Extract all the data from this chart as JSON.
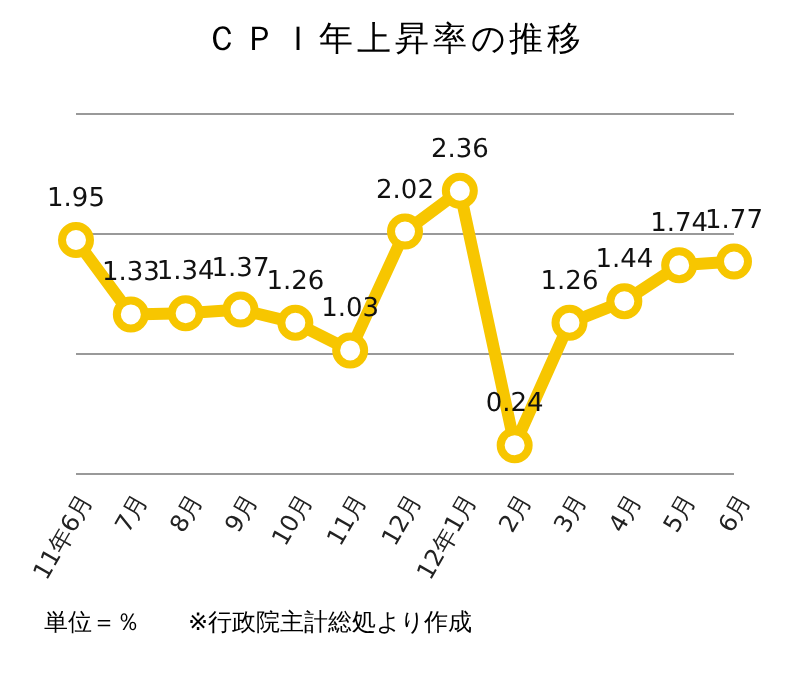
{
  "chart_data": {
    "type": "line",
    "title": "ＣＰＩ年上昇率の推移",
    "categories": [
      "11年6月",
      "7月",
      "8月",
      "9月",
      "10月",
      "11月",
      "12月",
      "12年1月",
      "2月",
      "3月",
      "4月",
      "5月",
      "6月"
    ],
    "series": [
      {
        "color": "#f7c600",
        "values": [
          1.95,
          1.33,
          1.34,
          1.37,
          1.26,
          1.03,
          2.02,
          2.36,
          0.24,
          1.26,
          1.44,
          1.74,
          1.77
        ]
      }
    ],
    "ylim": [
      0,
      3
    ],
    "yticks": [
      {
        "value": 0,
        "label": null
      },
      {
        "value": 1,
        "label": null
      },
      {
        "value": 2,
        "label": null
      },
      {
        "value": 3,
        "label": null
      }
    ],
    "grid": "y",
    "tick_labels": "x",
    "marker": "circle",
    "line_style": "solid",
    "data_labels": true,
    "legend": false,
    "annotations": [
      "単位＝％　　※行政院主計総処より作成"
    ]
  }
}
